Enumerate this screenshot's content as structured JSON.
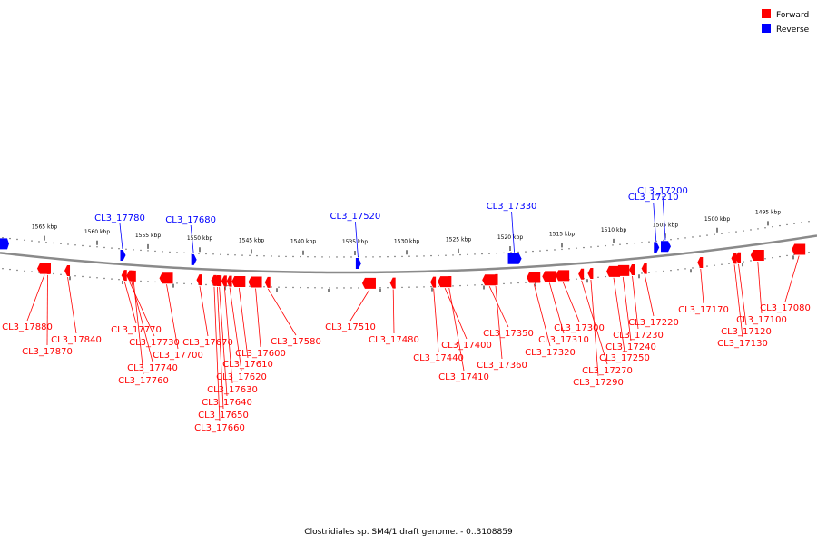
{
  "legend": [
    {
      "label": "Forward",
      "color": "#ff0000"
    },
    {
      "label": "Reverse",
      "color": "#0000ff"
    }
  ],
  "caption": "Clostridiales sp. SM4/1 draft genome. - 0..3108859",
  "colors": {
    "forward": "#ff0000",
    "reverse": "#0000ff",
    "backbone": "#8a8a8a",
    "dots": "#555555"
  },
  "chart_data": {
    "type": "genome-map",
    "unit": "kbp",
    "axis_range_kbp": [
      1492,
      1569
    ],
    "ticks": [
      {
        "kbp": 1565,
        "label": "1565 kbp"
      },
      {
        "kbp": 1560,
        "label": "1560 kbp"
      },
      {
        "kbp": 1555,
        "label": "1555 kbp"
      },
      {
        "kbp": 1550,
        "label": "1550 kbp"
      },
      {
        "kbp": 1545,
        "label": "1545 kbp"
      },
      {
        "kbp": 1540,
        "label": "1540 kbp"
      },
      {
        "kbp": 1535,
        "label": "1535 kbp"
      },
      {
        "kbp": 1530,
        "label": "1530 kbp"
      },
      {
        "kbp": 1525,
        "label": "1525 kbp"
      },
      {
        "kbp": 1520,
        "label": "1520 kbp"
      },
      {
        "kbp": 1515,
        "label": "1515 kbp"
      },
      {
        "kbp": 1510,
        "label": "1510 kbp"
      },
      {
        "kbp": 1505,
        "label": "1505 kbp"
      },
      {
        "kbp": 1500,
        "label": "1500 kbp"
      },
      {
        "kbp": 1495,
        "label": "1495 kbp"
      }
    ],
    "reverse_genes": [
      {
        "id": "CL3_17780",
        "kbp": 1557.5
      },
      {
        "id": "CL3_17680",
        "kbp": 1550.6
      },
      {
        "id": "CL3_17520",
        "kbp": 1534.7
      },
      {
        "id": "CL3_17330",
        "kbp": 1519.6
      },
      {
        "id": "CL3_17210",
        "kbp": 1505.9
      },
      {
        "id": "CL3_17200",
        "kbp": 1505.0
      }
    ],
    "forward_genes": [
      {
        "id": "CL3_17880",
        "kbp": 1565.0
      },
      {
        "id": "CL3_17870",
        "kbp": 1564.7
      },
      {
        "id": "CL3_17840",
        "kbp": 1562.8
      },
      {
        "id": "CL3_17770",
        "kbp": 1557.3
      },
      {
        "id": "CL3_17730",
        "kbp": 1556.8
      },
      {
        "id": "CL3_17740",
        "kbp": 1556.6
      },
      {
        "id": "CL3_17760",
        "kbp": 1556.4
      },
      {
        "id": "CL3_17700",
        "kbp": 1553.2
      },
      {
        "id": "CL3_17670",
        "kbp": 1550.0
      },
      {
        "id": "CL3_17660",
        "kbp": 1548.6
      },
      {
        "id": "CL3_17650",
        "kbp": 1548.3
      },
      {
        "id": "CL3_17640",
        "kbp": 1548.1
      },
      {
        "id": "CL3_17630",
        "kbp": 1547.6
      },
      {
        "id": "CL3_17620",
        "kbp": 1547.1
      },
      {
        "id": "CL3_17610",
        "kbp": 1546.2
      },
      {
        "id": "CL3_17600",
        "kbp": 1544.6
      },
      {
        "id": "CL3_17580",
        "kbp": 1543.4
      },
      {
        "id": "CL3_17510",
        "kbp": 1533.6
      },
      {
        "id": "CL3_17480",
        "kbp": 1531.3
      },
      {
        "id": "CL3_17440",
        "kbp": 1527.4
      },
      {
        "id": "CL3_17400",
        "kbp": 1526.3
      },
      {
        "id": "CL3_17410",
        "kbp": 1525.9
      },
      {
        "id": "CL3_17350",
        "kbp": 1522.0
      },
      {
        "id": "CL3_17360",
        "kbp": 1521.4
      },
      {
        "id": "CL3_17300",
        "kbp": 1514.9
      },
      {
        "id": "CL3_17310",
        "kbp": 1516.2
      },
      {
        "id": "CL3_17320",
        "kbp": 1517.7
      },
      {
        "id": "CL3_17270",
        "kbp": 1513.1
      },
      {
        "id": "CL3_17290",
        "kbp": 1512.2
      },
      {
        "id": "CL3_17250",
        "kbp": 1510.0
      },
      {
        "id": "CL3_17240",
        "kbp": 1509.1
      },
      {
        "id": "CL3_17230",
        "kbp": 1508.2
      },
      {
        "id": "CL3_17220",
        "kbp": 1507.0
      },
      {
        "id": "CL3_17170",
        "kbp": 1501.6
      },
      {
        "id": "CL3_17130",
        "kbp": 1498.3
      },
      {
        "id": "CL3_17120",
        "kbp": 1497.9
      },
      {
        "id": "CL3_17100",
        "kbp": 1496.0
      },
      {
        "id": "CL3_17080",
        "kbp": 1493.1
      }
    ]
  }
}
